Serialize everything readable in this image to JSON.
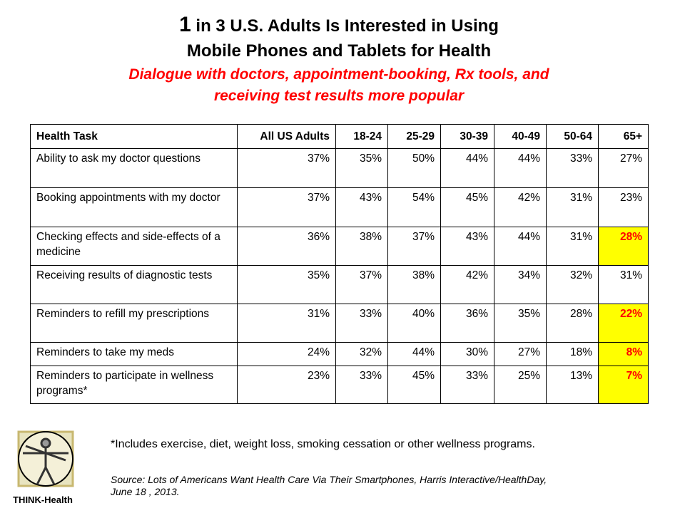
{
  "header": {
    "title_number": "1",
    "title_line1_rest": " in 3 U.S. Adults Is Interested in Using",
    "title_line2": "Mobile Phones and Tablets for Health",
    "subtitle_lines": [
      "Dialogue with doctors, appointment-booking, Rx tools, and",
      "receiving test results more popular"
    ]
  },
  "table": {
    "columns": [
      "Health Task",
      "All US Adults",
      "18-24",
      "25-29",
      "30-39",
      "40-49",
      "50-64",
      "65+"
    ],
    "highlight_color": "#ffff00",
    "highlight_text_color": "#ff0000",
    "rows": [
      [
        "Ability to ask my doctor questions",
        "37%",
        "35%",
        "50%",
        "44%",
        "44%",
        "33%",
        "27%"
      ],
      [
        "Booking appointments with my doctor",
        "37%",
        "43%",
        "54%",
        "45%",
        "42%",
        "31%",
        "23%"
      ],
      [
        "Checking effects and side-effects of a medicine",
        "36%",
        "38%",
        "37%",
        "43%",
        "44%",
        "31%",
        {
          "text": "28%",
          "highlight": true
        }
      ],
      [
        "Receiving results of diagnostic tests",
        "35%",
        "37%",
        "38%",
        "42%",
        "34%",
        "32%",
        "31%"
      ],
      [
        "Reminders to refill my prescriptions",
        "31%",
        "33%",
        "40%",
        "36%",
        "35%",
        "28%",
        {
          "text": "22%",
          "highlight": true
        }
      ],
      [
        "Reminders to take my meds",
        "24%",
        "32%",
        "44%",
        "30%",
        "27%",
        "18%",
        {
          "text": "8%",
          "highlight": true
        }
      ],
      [
        "Reminders to participate in wellness programs*",
        "23%",
        "33%",
        "45%",
        "33%",
        "25%",
        "13%",
        {
          "text": "7%",
          "highlight": true
        }
      ]
    ]
  },
  "footnote": "*Includes exercise, diet, weight loss, smoking cessation or other wellness programs.",
  "source_lines": [
    "Source: Lots of Americans Want Health Care Via Their Smartphones, Harris Interactive/HealthDay,",
    "June 18 , 2013."
  ],
  "logo_text": "THINK-Health"
}
